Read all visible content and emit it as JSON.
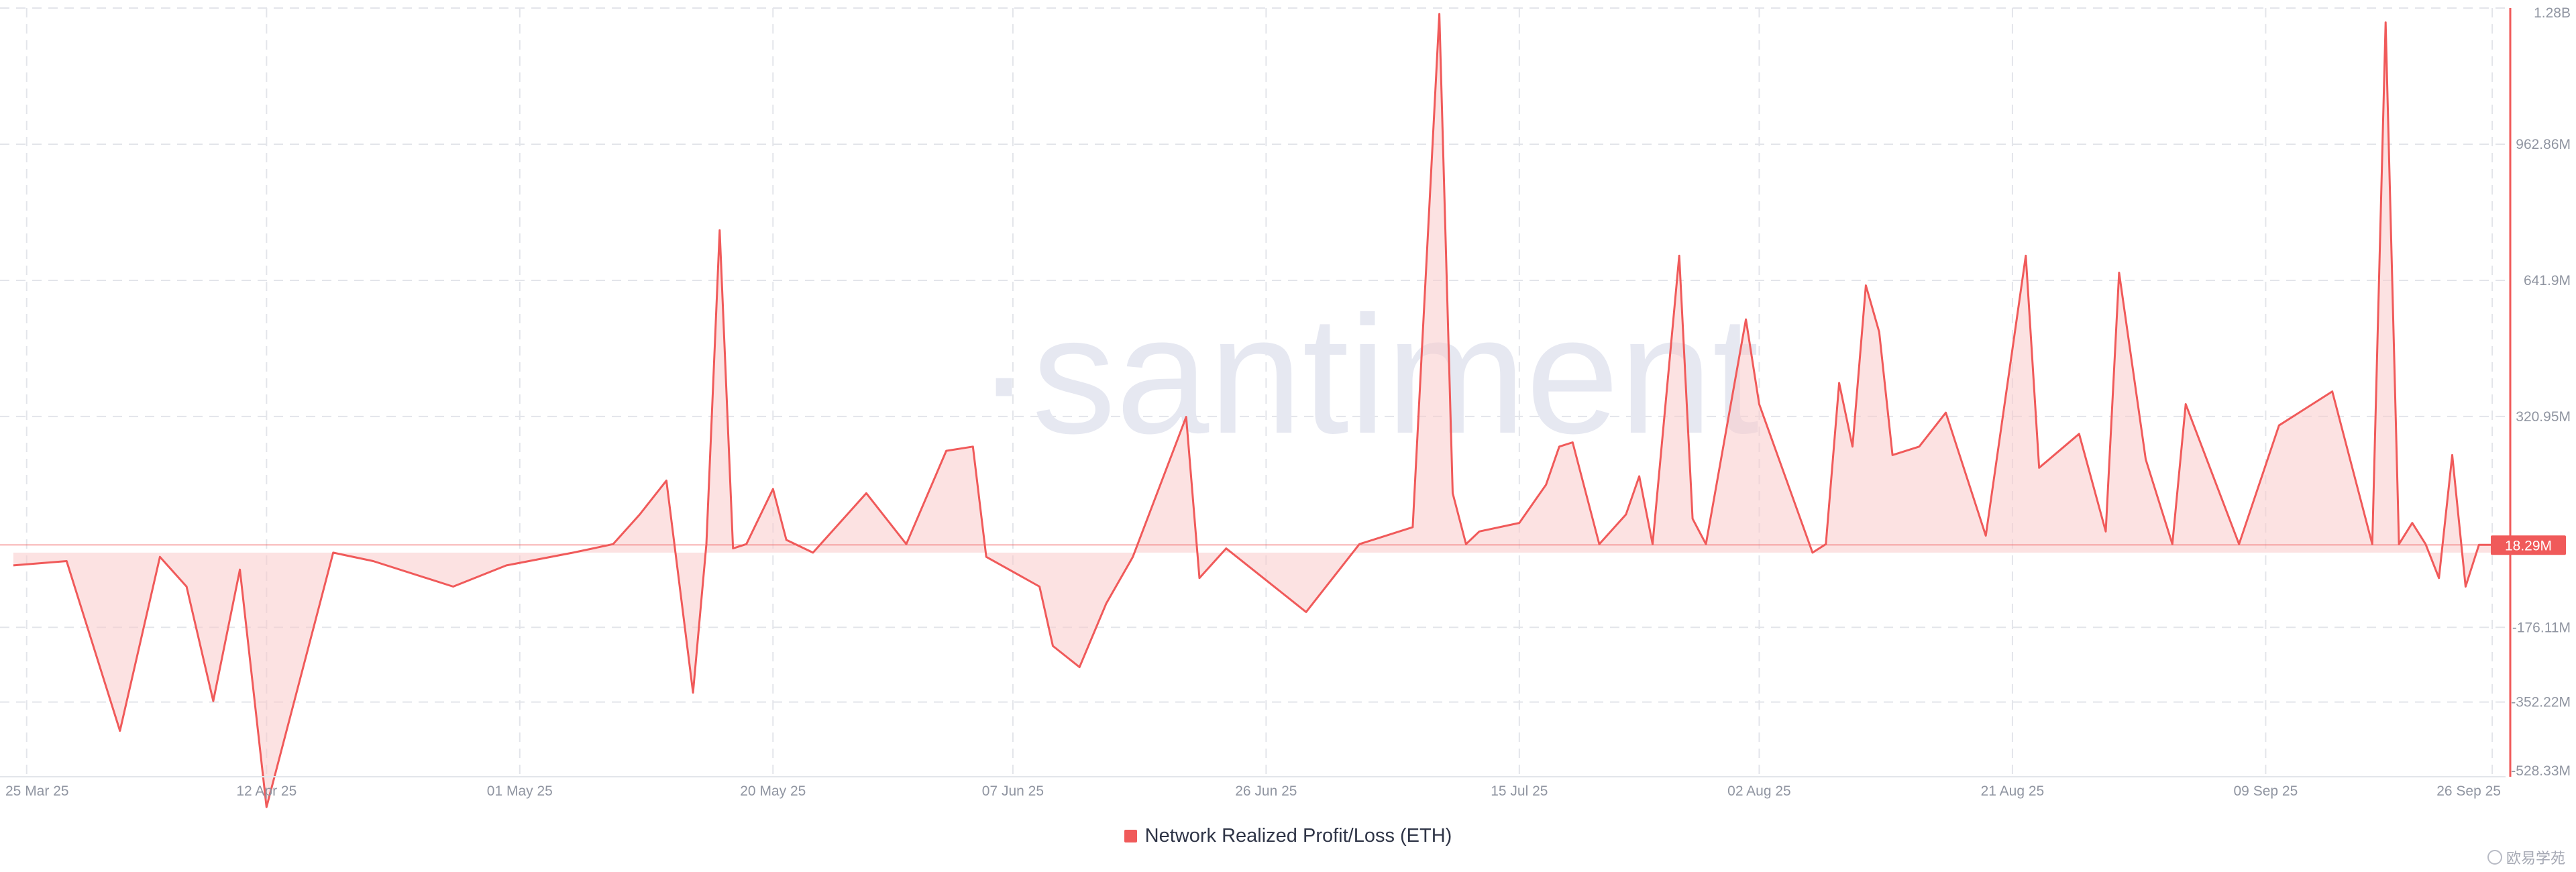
{
  "watermark": "·santiment",
  "credit": "欧易学苑",
  "colors": {
    "series": "#f05a5a",
    "area": "#f9caca",
    "grid": "#e3e5ea",
    "axis_text": "#9095a1",
    "watermark": "#e6e8f1",
    "badge_bg": "#f05a5a",
    "badge_text": "#ffffff"
  },
  "chart_data": {
    "type": "area",
    "xlabel": "",
    "ylabel": "",
    "x_ticks": [
      "25 Mar 25",
      "12 Apr 25",
      "01 May 25",
      "20 May 25",
      "07 Jun 25",
      "26 Jun 25",
      "15 Jul 25",
      "02 Aug 25",
      "21 Aug 25",
      "09 Sep 25",
      "26 Sep 25"
    ],
    "y_ticks": [
      "1.28B",
      "962.86M",
      "641.9M",
      "320.95M",
      "-176.11M",
      "-352.22M",
      "-528.33M"
    ],
    "y_tick_values": [
      1283800000,
      962860000,
      641900000,
      320950000,
      -176110000,
      -352220000,
      -528330000
    ],
    "ylim": [
      -528330000,
      1283800000
    ],
    "baseline": 0,
    "last_value_label": "18.29M",
    "last_value": 18290000,
    "legend_position": "bottom-center",
    "grid": true,
    "x": [
      "2025-03-24",
      "2025-03-28",
      "2025-04-01",
      "2025-04-04",
      "2025-04-06",
      "2025-04-08",
      "2025-04-10",
      "2025-04-12",
      "2025-04-17",
      "2025-04-20",
      "2025-04-26",
      "2025-04-30",
      "2025-05-05",
      "2025-05-08",
      "2025-05-10",
      "2025-05-12",
      "2025-05-14",
      "2025-05-15",
      "2025-05-16",
      "2025-05-17",
      "2025-05-18",
      "2025-05-20",
      "2025-05-21",
      "2025-05-23",
      "2025-05-27",
      "2025-05-30",
      "2025-06-02",
      "2025-06-04",
      "2025-06-05",
      "2025-06-09",
      "2025-06-10",
      "2025-06-12",
      "2025-06-14",
      "2025-06-16",
      "2025-06-20",
      "2025-06-21",
      "2025-06-23",
      "2025-06-29",
      "2025-07-01",
      "2025-07-03",
      "2025-07-07",
      "2025-07-09",
      "2025-07-10",
      "2025-07-11",
      "2025-07-12",
      "2025-07-15",
      "2025-07-17",
      "2025-07-18",
      "2025-07-19",
      "2025-07-21",
      "2025-07-23",
      "2025-07-24",
      "2025-07-25",
      "2025-07-27",
      "2025-07-28",
      "2025-07-29",
      "2025-08-01",
      "2025-08-02",
      "2025-08-06",
      "2025-08-07",
      "2025-08-08",
      "2025-08-09",
      "2025-08-10",
      "2025-08-11",
      "2025-08-12",
      "2025-08-14",
      "2025-08-16",
      "2025-08-19",
      "2025-08-22",
      "2025-08-23",
      "2025-08-26",
      "2025-08-28",
      "2025-08-29",
      "2025-08-31",
      "2025-09-02",
      "2025-09-03",
      "2025-09-07",
      "2025-09-10",
      "2025-09-14",
      "2025-09-17",
      "2025-09-18",
      "2025-09-19",
      "2025-09-20",
      "2025-09-21",
      "2025-09-22",
      "2025-09-23",
      "2025-09-24",
      "2025-09-25",
      "2025-09-26"
    ],
    "series": [
      {
        "values": [
          -30000000,
          -20000000,
          -420000000,
          -10000000,
          -80000000,
          -350000000,
          -40000000,
          -600000000,
          0,
          -20000000,
          -80000000,
          -30000000,
          0,
          20000000,
          90000000,
          170000000,
          -330000000,
          20000000,
          760000000,
          10000000,
          20000000,
          150000000,
          30000000,
          0,
          140000000,
          20000000,
          240000000,
          250000000,
          -10000000,
          -80000000,
          -220000000,
          -270000000,
          -120000000,
          -10000000,
          320000000,
          -60000000,
          10000000,
          -140000000,
          -60000000,
          20000000,
          60000000,
          1270000000,
          140000000,
          20000000,
          50000000,
          70000000,
          160000000,
          250000000,
          260000000,
          20000000,
          90000000,
          180000000,
          20000000,
          700000000,
          80000000,
          20000000,
          550000000,
          350000000,
          0,
          20000000,
          400000000,
          250000000,
          630000000,
          520000000,
          230000000,
          250000000,
          330000000,
          40000000,
          700000000,
          200000000,
          280000000,
          50000000,
          660000000,
          220000000,
          20000000,
          350000000,
          20000000,
          300000000,
          380000000,
          20000000,
          1250000000,
          20000000,
          70000000,
          20000000,
          -60000000,
          230000000,
          -80000000,
          18290000,
          18290000
        ]
      }
    ],
    "legend": [
      "Network Realized Profit/Loss (ETH)"
    ]
  }
}
